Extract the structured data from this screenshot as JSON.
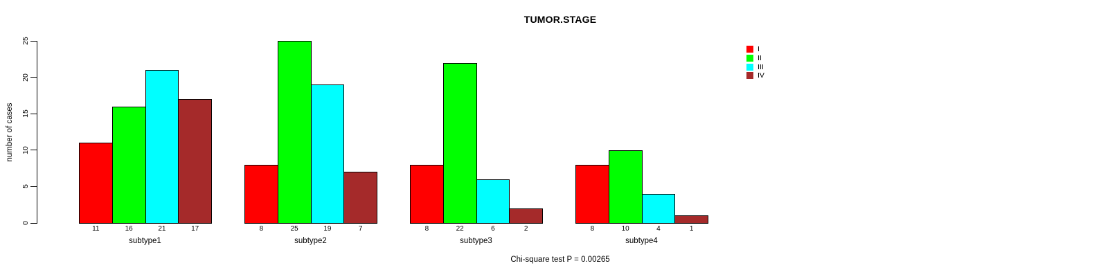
{
  "figure": {
    "title": "TUMOR.STAGE",
    "annotation": "Chi-square test P = 0.00265"
  },
  "chart_data": {
    "type": "bar",
    "title": "TUMOR.STAGE",
    "xlabel": "",
    "ylabel": "number of cases",
    "ylim": [
      0,
      25
    ],
    "yticks": [
      0,
      5,
      10,
      15,
      20,
      25
    ],
    "grid": false,
    "legend_position": "top-right",
    "legend_labels": [
      "I",
      "II",
      "III",
      "IV"
    ],
    "categories": [
      "subtype1",
      "subtype2",
      "subtype3",
      "subtype4"
    ],
    "series": [
      {
        "name": "I",
        "color": "#ff0000",
        "values": [
          11,
          8,
          8,
          8
        ]
      },
      {
        "name": "II",
        "color": "#00ff00",
        "values": [
          16,
          25,
          22,
          10
        ]
      },
      {
        "name": "III",
        "color": "#00ffff",
        "values": [
          21,
          19,
          6,
          4
        ]
      },
      {
        "name": "IV",
        "color": "#a52a2a",
        "values": [
          17,
          7,
          2,
          1
        ]
      }
    ],
    "bar_value_labels_shown": true,
    "annotation": "Chi-square test P = 0.00265"
  },
  "colors": {
    "stage_I": "#ff0000",
    "stage_II": "#00ff00",
    "stage_III": "#00ffff",
    "stage_IV": "#a52a2a",
    "axis": "#000000",
    "background": "#ffffff"
  }
}
